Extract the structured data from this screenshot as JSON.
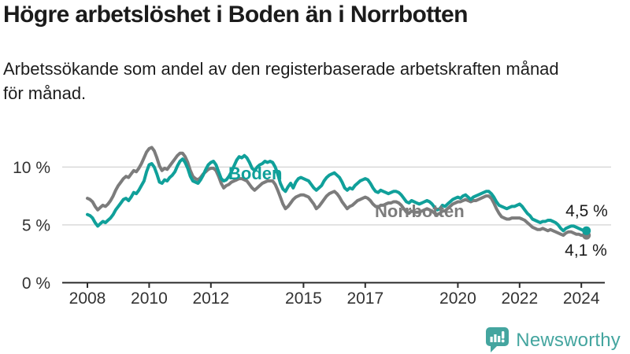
{
  "header": {
    "title": "Högre arbetslöshet i Boden än i Norrbotten",
    "subtitle_line1": "Arbetssökande som andel av den registerbaserade arbetskraften månad",
    "subtitle_line2": "för månad."
  },
  "branding": {
    "name": "Newsworthy"
  },
  "colors": {
    "boden": "#10a09a",
    "norrbotten": "#7c7c7c",
    "grid": "#d9d9d9",
    "axis": "#2b2b2b",
    "logo_teal": "#44a59f"
  },
  "chart_data": {
    "type": "line",
    "title": "Högre arbetslöshet i Boden än i Norrbotten",
    "subtitle": "Arbetssökande som andel av den registerbaserade arbetskraften månad för månad.",
    "x_unit": "month",
    "x_start_year": 2008,
    "x_end": "2024-03",
    "xlim": [
      2007.2,
      2024.95
    ],
    "ylim": [
      0,
      12.5
    ],
    "grid": "horizontal",
    "legend_position": "inline-labels",
    "x_axis": {
      "tick_years": [
        2008,
        2010,
        2012,
        2015,
        2017,
        2020,
        2022,
        2024
      ],
      "tick_labels": [
        "2008",
        "2010",
        "2012",
        "2015",
        "2017",
        "2020",
        "2022",
        "2024"
      ]
    },
    "y_axis": {
      "ticks": [
        {
          "label": "0 %",
          "value": 0
        },
        {
          "label": "5 %",
          "value": 5
        },
        {
          "label": "10 %",
          "value": 10
        }
      ],
      "gridline_values": [
        5,
        10
      ]
    },
    "series": [
      {
        "name": "Norrbotten",
        "color": "#7c7c7c",
        "end_label": "4,1 %",
        "end_value": 4.1,
        "values": [
          7.3,
          7.2,
          7.0,
          6.6,
          6.3,
          6.5,
          6.7,
          6.6,
          6.8,
          7.1,
          7.5,
          8.0,
          8.4,
          8.7,
          9.0,
          9.2,
          9.1,
          9.4,
          9.7,
          9.6,
          9.9,
          10.3,
          10.8,
          11.3,
          11.6,
          11.7,
          11.4,
          10.8,
          10.1,
          9.7,
          9.9,
          9.8,
          10.1,
          10.4,
          10.7,
          11.0,
          11.2,
          11.2,
          10.9,
          10.4,
          9.7,
          9.2,
          9.0,
          8.9,
          9.1,
          9.4,
          9.6,
          9.8,
          9.9,
          9.9,
          9.7,
          9.2,
          8.6,
          8.2,
          8.4,
          8.5,
          8.7,
          8.8,
          8.9,
          9.0,
          9.0,
          8.9,
          8.8,
          8.5,
          8.2,
          8.0,
          8.2,
          8.4,
          8.6,
          8.7,
          8.8,
          8.8,
          8.8,
          8.5,
          8.0,
          7.4,
          6.8,
          6.4,
          6.6,
          6.9,
          7.2,
          7.4,
          7.5,
          7.6,
          7.6,
          7.5,
          7.4,
          7.1,
          6.8,
          6.4,
          6.6,
          6.9,
          7.2,
          7.5,
          7.7,
          7.8,
          7.9,
          7.7,
          7.4,
          7.0,
          6.7,
          6.4,
          6.6,
          6.7,
          6.9,
          7.1,
          7.2,
          7.3,
          7.4,
          7.3,
          7.1,
          6.8,
          6.6,
          6.5,
          6.7,
          6.7,
          6.8,
          6.9,
          6.9,
          7.0,
          7.0,
          6.9,
          6.7,
          6.4,
          6.1,
          6.0,
          6.2,
          6.1,
          6.1,
          6.1,
          6.2,
          6.3,
          6.4,
          6.3,
          6.2,
          6.0,
          5.9,
          6.0,
          6.2,
          6.2,
          6.4,
          6.6,
          6.8,
          6.9,
          7.0,
          7.0,
          7.1,
          7.2,
          7.1,
          7.0,
          7.1,
          7.1,
          7.2,
          7.3,
          7.4,
          7.5,
          7.5,
          7.3,
          6.9,
          6.4,
          6.0,
          5.7,
          5.6,
          5.5,
          5.5,
          5.6,
          5.6,
          5.6,
          5.6,
          5.5,
          5.4,
          5.2,
          5.0,
          4.8,
          4.7,
          4.6,
          4.6,
          4.7,
          4.6,
          4.5,
          4.6,
          4.5,
          4.4,
          4.3,
          4.2,
          4.1,
          4.3,
          4.4,
          4.4,
          4.3,
          4.2,
          4.2,
          4.1,
          4.1,
          4.1
        ]
      },
      {
        "name": "Boden",
        "color": "#10a09a",
        "end_label": "4,5 %",
        "end_value": 4.5,
        "values": [
          5.9,
          5.8,
          5.6,
          5.2,
          4.9,
          5.1,
          5.3,
          5.2,
          5.4,
          5.6,
          5.9,
          6.3,
          6.6,
          6.9,
          7.2,
          7.3,
          7.1,
          7.4,
          7.8,
          7.7,
          8.0,
          8.4,
          8.8,
          9.6,
          10.2,
          10.3,
          10.0,
          9.4,
          8.7,
          8.6,
          8.9,
          8.8,
          9.1,
          9.3,
          9.6,
          10.1,
          10.5,
          10.7,
          10.4,
          9.9,
          9.2,
          8.8,
          8.7,
          8.6,
          8.9,
          9.3,
          9.8,
          10.2,
          10.4,
          10.5,
          10.2,
          9.6,
          9.0,
          8.8,
          8.9,
          9.2,
          9.6,
          10.1,
          10.6,
          10.9,
          10.8,
          11.0,
          10.8,
          10.4,
          9.9,
          9.7,
          10.0,
          10.2,
          10.3,
          10.5,
          10.4,
          10.5,
          10.4,
          10.0,
          9.4,
          8.6,
          8.1,
          7.9,
          8.3,
          8.6,
          8.2,
          8.7,
          9.0,
          9.1,
          9.0,
          8.9,
          8.8,
          8.5,
          8.2,
          8.0,
          8.2,
          8.4,
          8.8,
          9.1,
          9.3,
          9.4,
          9.5,
          9.3,
          9.1,
          8.7,
          8.2,
          8.0,
          8.2,
          8.1,
          8.4,
          8.6,
          8.8,
          8.9,
          9.0,
          8.9,
          8.6,
          8.2,
          7.9,
          7.8,
          8.0,
          7.9,
          7.8,
          7.7,
          7.8,
          7.9,
          7.9,
          7.8,
          7.6,
          7.3,
          7.0,
          6.9,
          7.1,
          7.0,
          6.9,
          6.8,
          6.9,
          7.0,
          7.1,
          7.0,
          6.8,
          6.5,
          6.3,
          6.4,
          6.7,
          6.6,
          6.8,
          7.0,
          7.2,
          7.3,
          7.4,
          7.3,
          7.5,
          7.6,
          7.4,
          7.2,
          7.4,
          7.5,
          7.6,
          7.7,
          7.8,
          7.9,
          7.9,
          7.7,
          7.4,
          7.0,
          6.7,
          6.6,
          6.5,
          6.4,
          6.5,
          6.6,
          6.6,
          6.7,
          6.8,
          6.6,
          6.3,
          6.0,
          5.8,
          5.5,
          5.4,
          5.3,
          5.2,
          5.3,
          5.3,
          5.4,
          5.4,
          5.3,
          5.2,
          5.0,
          4.7,
          4.5,
          4.7,
          4.8,
          4.9,
          4.9,
          4.8,
          4.7,
          4.6,
          4.5,
          4.5
        ]
      }
    ]
  }
}
